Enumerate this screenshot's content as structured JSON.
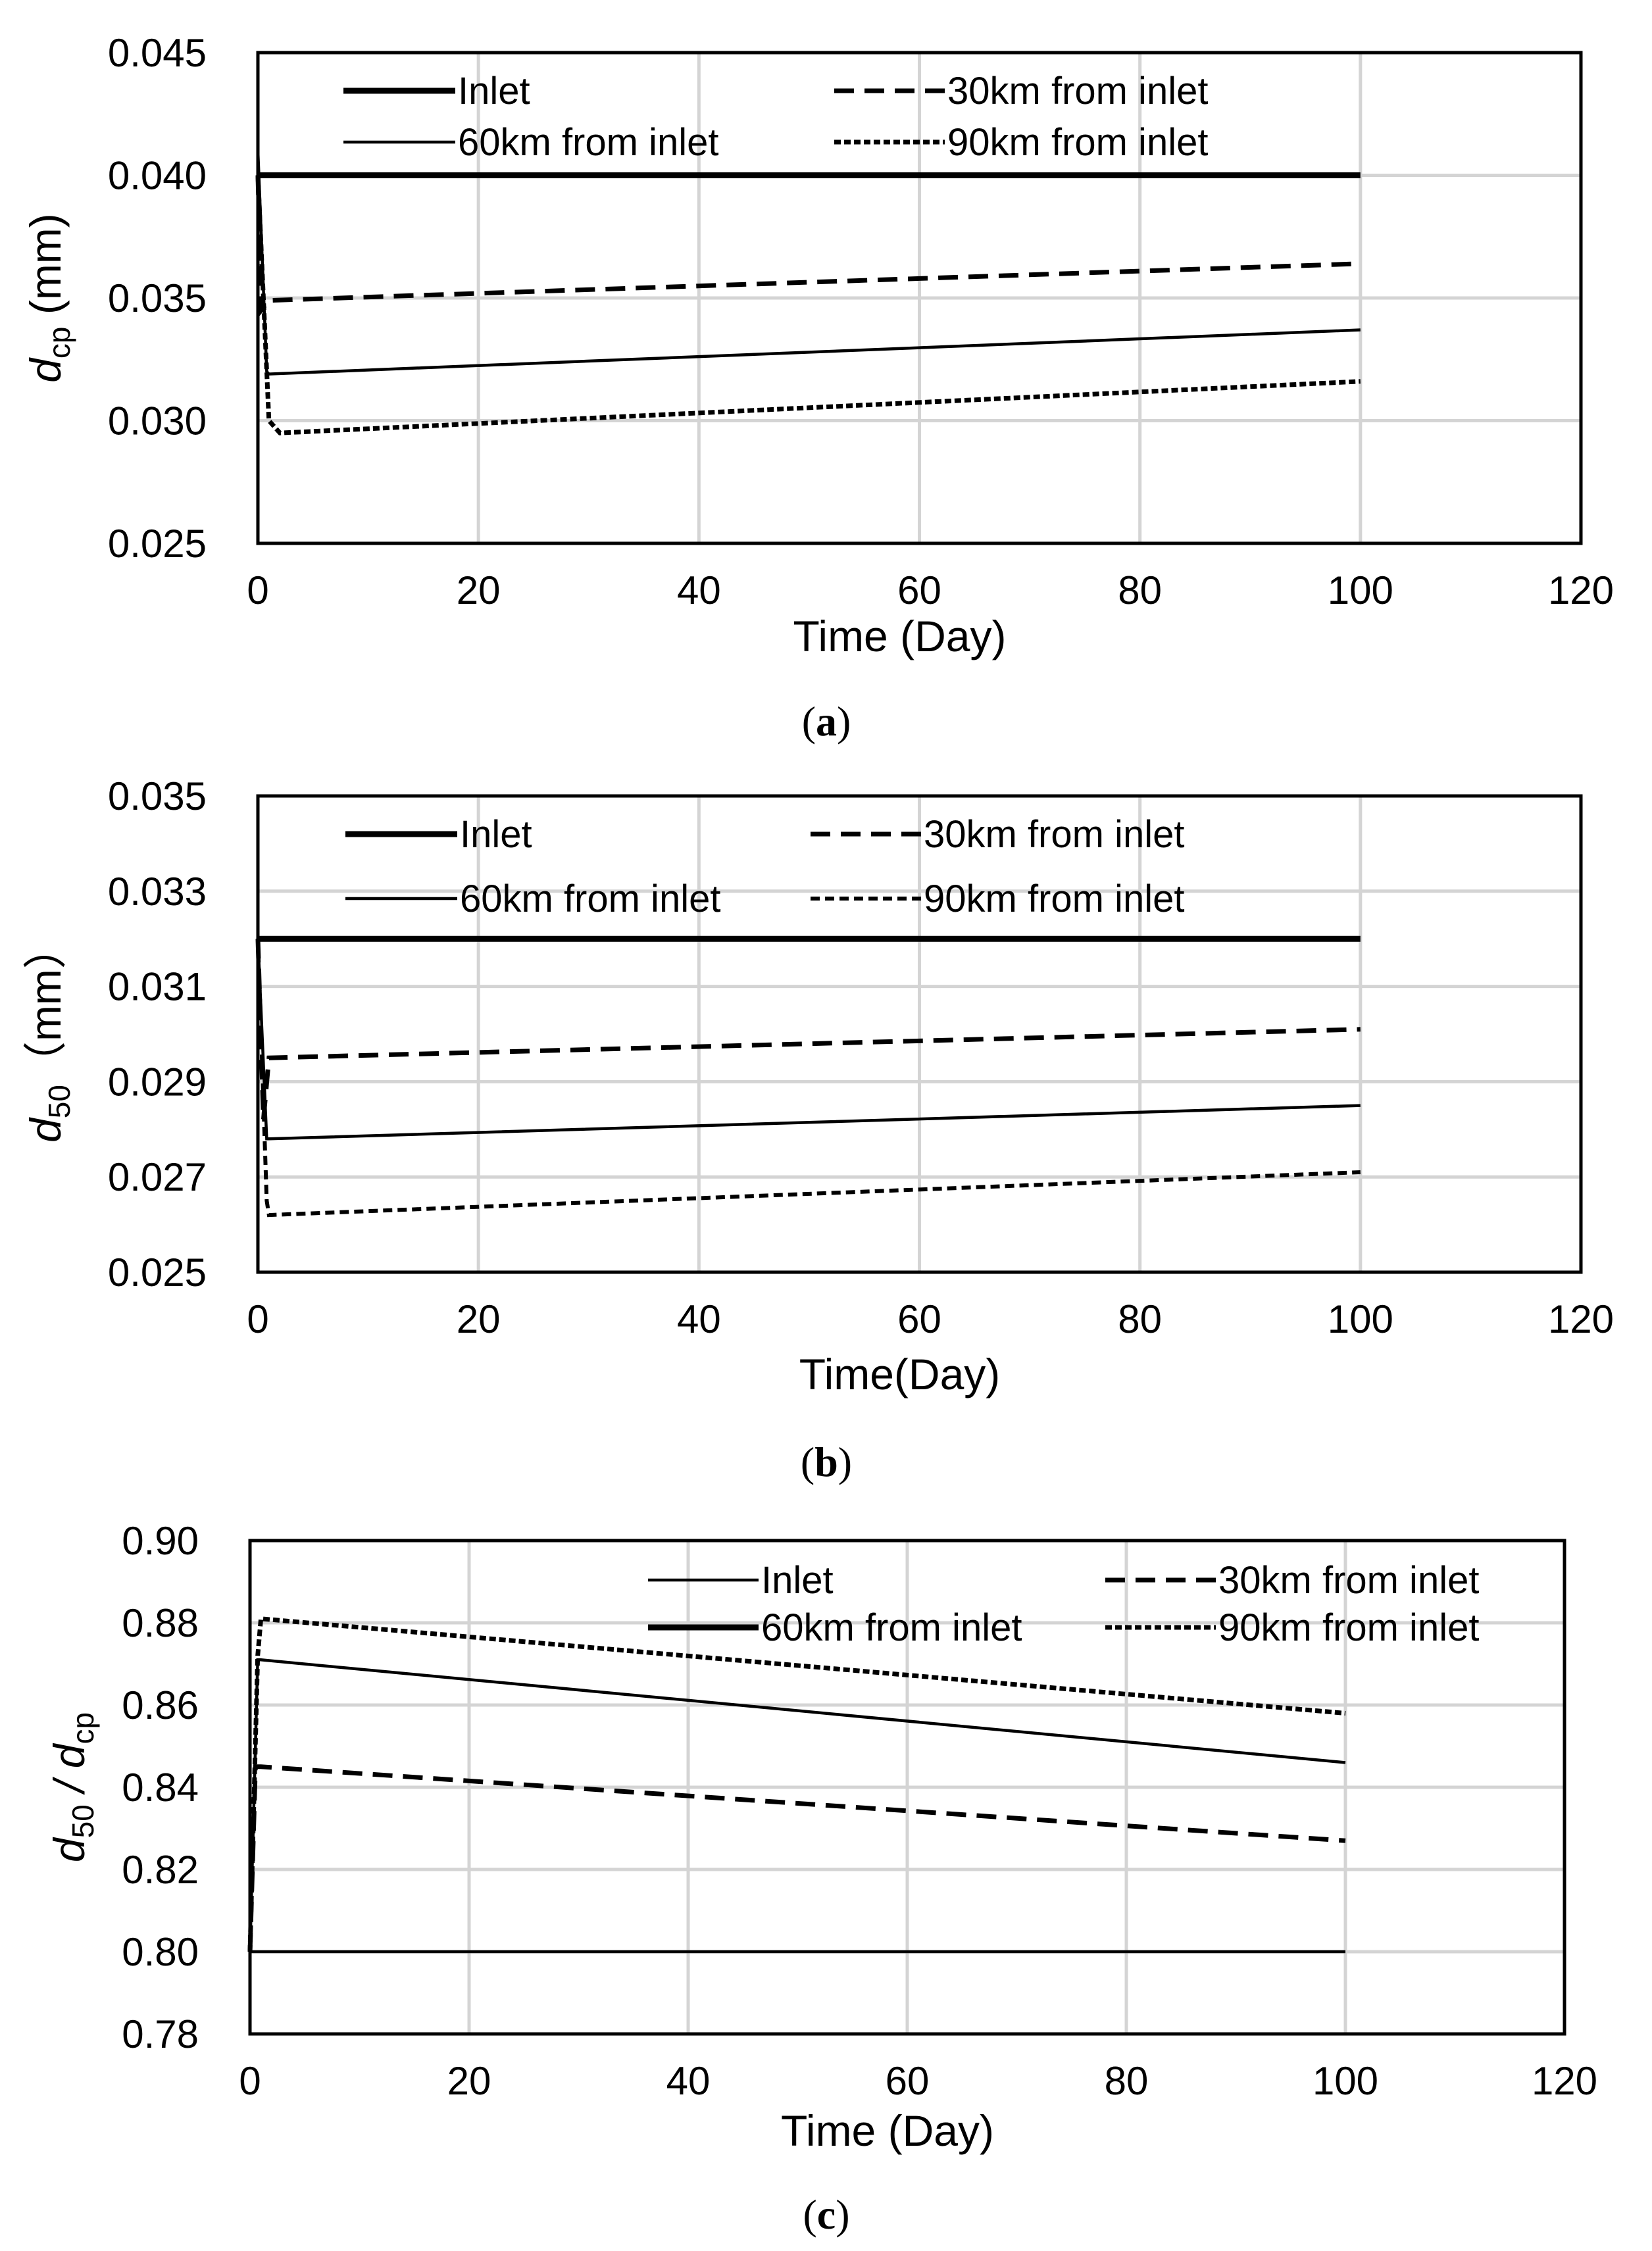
{
  "chart_data": [
    {
      "type": "line",
      "panel": "a",
      "caption_open": "(",
      "caption_letter": "a",
      "caption_close": ")",
      "xlabel": "Time (Day)",
      "ylabel_base": "d",
      "ylabel_sub": "cp",
      "ylabel_unit": " (mm)",
      "xlim": [
        0,
        120
      ],
      "ylim": [
        0.025,
        0.045
      ],
      "xticks": [
        0,
        20,
        40,
        60,
        80,
        100,
        120
      ],
      "xtick_labels": [
        "0",
        "20",
        "40",
        "60",
        "80",
        "100",
        "120"
      ],
      "yticks": [
        0.025,
        0.03,
        0.035,
        0.04,
        0.045
      ],
      "ytick_labels": [
        "0.025",
        "0.030",
        "0.035",
        "0.040",
        "0.045"
      ],
      "grid": true,
      "legend_placement": "top",
      "series": [
        {
          "name": "Inlet",
          "style": "thick-solid",
          "x": [
            0,
            100
          ],
          "y": [
            0.04,
            0.04
          ]
        },
        {
          "name": "30km from inlet",
          "style": "dashed",
          "x": [
            0,
            0.3,
            1,
            100
          ],
          "y": [
            0.04,
            0.0345,
            0.0349,
            0.0364
          ]
        },
        {
          "name": "60km from inlet",
          "style": "thin-solid",
          "x": [
            0,
            0.8,
            1,
            100
          ],
          "y": [
            0.041,
            0.032,
            0.0319,
            0.0337
          ]
        },
        {
          "name": "90km from inlet",
          "style": "dotted",
          "x": [
            0,
            1,
            2,
            100
          ],
          "y": [
            0.04,
            0.03,
            0.0295,
            0.0316
          ]
        }
      ]
    },
    {
      "type": "line",
      "panel": "b",
      "caption_open": "(",
      "caption_letter": "b",
      "caption_close": ")",
      "xlabel": "Time(Day)",
      "ylabel_base": "d",
      "ylabel_sub": "50",
      "ylabel_unit": "（mm）",
      "xlim": [
        0,
        120
      ],
      "ylim": [
        0.025,
        0.035
      ],
      "xticks": [
        0,
        20,
        40,
        60,
        80,
        100,
        120
      ],
      "xtick_labels": [
        "0",
        "20",
        "40",
        "60",
        "80",
        "100",
        "120"
      ],
      "yticks": [
        0.025,
        0.027,
        0.029,
        0.031,
        0.033,
        0.035
      ],
      "ytick_labels": [
        "0.025",
        "0.027",
        "0.029",
        "0.031",
        "0.033",
        "0.035"
      ],
      "grid": true,
      "legend_placement": "top",
      "series": [
        {
          "name": "Inlet",
          "style": "thick-solid",
          "x": [
            0,
            100
          ],
          "y": [
            0.032,
            0.032
          ]
        },
        {
          "name": "30km from inlet",
          "style": "dashed",
          "x": [
            0,
            0.5,
            1,
            100
          ],
          "y": [
            0.032,
            0.0282,
            0.0295,
            0.0301
          ]
        },
        {
          "name": "60km from inlet",
          "style": "thin-solid",
          "x": [
            0,
            0.8,
            1,
            100
          ],
          "y": [
            0.032,
            0.0278,
            0.0278,
            0.0285
          ]
        },
        {
          "name": "90km from inlet",
          "style": "dashed-fine",
          "x": [
            0,
            0.8,
            1,
            100
          ],
          "y": [
            0.032,
            0.0265,
            0.0262,
            0.0271
          ]
        }
      ]
    },
    {
      "type": "line",
      "panel": "c",
      "caption_open": "(",
      "caption_letter": "c",
      "caption_close": ")",
      "xlabel": "Time (Day)",
      "ylabel_base": "d",
      "ylabel_sub": "50",
      "ylabel_mid": " / d",
      "ylabel_sub2": "cp",
      "xlim": [
        0,
        120
      ],
      "ylim": [
        0.78,
        0.9
      ],
      "xticks": [
        0,
        20,
        40,
        60,
        80,
        100,
        120
      ],
      "xtick_labels": [
        "0",
        "20",
        "40",
        "60",
        "80",
        "100",
        "120"
      ],
      "yticks": [
        0.78,
        0.8,
        0.82,
        0.84,
        0.86,
        0.88,
        0.9
      ],
      "ytick_labels": [
        "0.78",
        "0.80",
        "0.82",
        "0.84",
        "0.86",
        "0.88",
        "0.90"
      ],
      "grid": true,
      "legend_placement": "top-right",
      "series": [
        {
          "name": "Inlet",
          "style": "thin-solid",
          "legend_style": "thin-solid",
          "x": [
            0,
            100
          ],
          "y": [
            0.8,
            0.8
          ]
        },
        {
          "name": "30km from inlet",
          "style": "dashed",
          "x": [
            0,
            0.5,
            1,
            100
          ],
          "y": [
            0.8,
            0.845,
            0.845,
            0.827
          ]
        },
        {
          "name": "60km from inlet",
          "style": "thin-solid",
          "legend_style": "thick-solid",
          "x": [
            0,
            0.7,
            1,
            100
          ],
          "y": [
            0.8,
            0.871,
            0.871,
            0.846
          ]
        },
        {
          "name": "90km from inlet",
          "style": "dotted",
          "x": [
            0,
            0.7,
            1,
            100
          ],
          "y": [
            0.8,
            0.872,
            0.881,
            0.858
          ]
        }
      ]
    }
  ]
}
